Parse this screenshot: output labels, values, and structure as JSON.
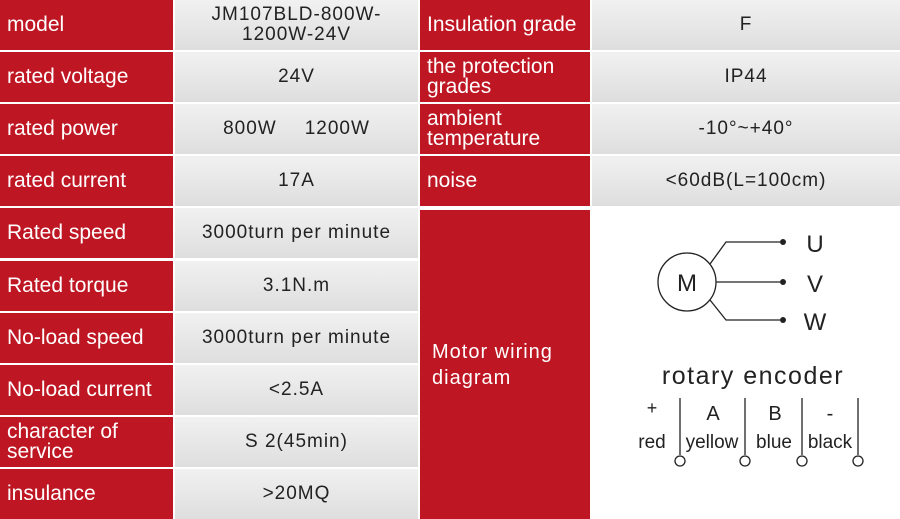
{
  "left_rows": [
    {
      "label": "model",
      "value": [
        "JM107BLD-800W-1200W-24V"
      ]
    },
    {
      "label": "rated voltage",
      "value": [
        "24V"
      ]
    },
    {
      "label": "rated power",
      "value": [
        "800W",
        "1200W"
      ]
    },
    {
      "label": "rated current",
      "value": [
        "17A"
      ]
    },
    {
      "label": "Rated speed",
      "value": [
        "3000turn per minute"
      ]
    },
    {
      "label": "Rated torque",
      "value": [
        "3.1N.m"
      ]
    },
    {
      "label": "No-load speed",
      "value": [
        "3000turn per minute"
      ]
    },
    {
      "label": "No-load current",
      "value": [
        "<2.5A"
      ]
    },
    {
      "label": "character of service",
      "value": [
        "S 2(45min)"
      ]
    },
    {
      "label": "insulance",
      "value": [
        ">20MQ"
      ]
    }
  ],
  "right_rows": [
    {
      "label": "Insulation grade",
      "value": "F"
    },
    {
      "label": "the protection grades",
      "value": "IP44"
    },
    {
      "label": "ambient temperature",
      "value": "-10°~+40°"
    },
    {
      "label": "noise",
      "value": "<60dB(L=100cm)"
    }
  ],
  "wiring": {
    "label": "Motor wiring diagram",
    "motor": "M",
    "phases": [
      "U",
      "V",
      "W"
    ],
    "encoder_title": "rotary encoder",
    "pins": [
      {
        "top": "+",
        "bottom": "red"
      },
      {
        "top": "A",
        "bottom": "yellow"
      },
      {
        "top": "B",
        "bottom": "blue"
      },
      {
        "top": "-",
        "bottom": "black"
      }
    ]
  }
}
